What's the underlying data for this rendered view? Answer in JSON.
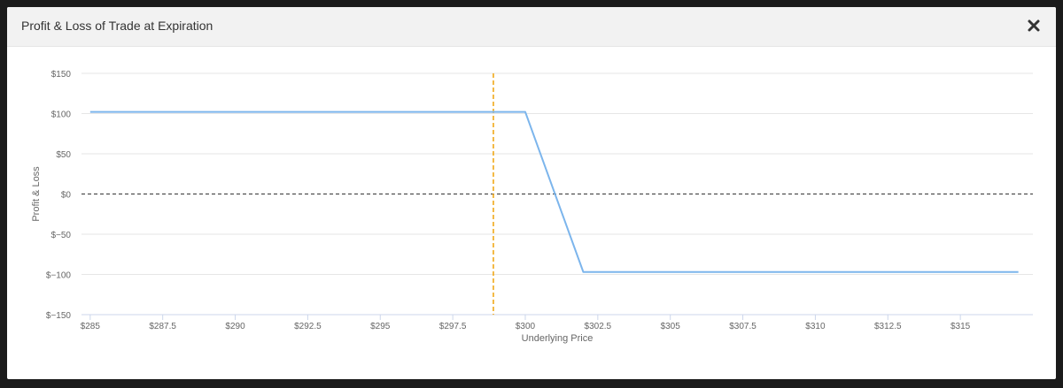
{
  "modal": {
    "title": "Profit & Loss of Trade at Expiration",
    "close_icon": "close-icon"
  },
  "colors": {
    "pnl_line": "#7cb5ec",
    "zero_line": "#333333",
    "current_price_line": "#f0a30a",
    "grid": "#e6e6e6",
    "tick_text": "#666666"
  },
  "chart_data": {
    "type": "line",
    "title": "",
    "xlabel": "Underlying Price",
    "ylabel": "Profit & Loss",
    "xlim": [
      284.7,
      317.5
    ],
    "ylim": [
      -150,
      150
    ],
    "x_ticks": [
      285,
      287.5,
      290,
      292.5,
      295,
      297.5,
      300,
      302.5,
      305,
      307.5,
      310,
      312.5,
      315
    ],
    "x_tick_labels": [
      "$285",
      "$287.5",
      "$290",
      "$292.5",
      "$295",
      "$297.5",
      "$300",
      "$302.5",
      "$305",
      "$307.5",
      "$310",
      "$312.5",
      "$315"
    ],
    "y_ticks": [
      150,
      100,
      50,
      0,
      -50,
      -100,
      -150
    ],
    "y_tick_labels": [
      "$150",
      "$100",
      "$50",
      "$0",
      "$−50",
      "$−100",
      "$−150"
    ],
    "grid": true,
    "series": [
      {
        "x": [
          285,
          300,
          302,
          317
        ],
        "y": [
          102,
          102,
          -97,
          -97
        ]
      }
    ],
    "reference_lines": [
      {
        "axis": "y",
        "value": 0,
        "style": "dashed"
      },
      {
        "axis": "x",
        "value": 298.9,
        "style": "dashed"
      }
    ]
  }
}
